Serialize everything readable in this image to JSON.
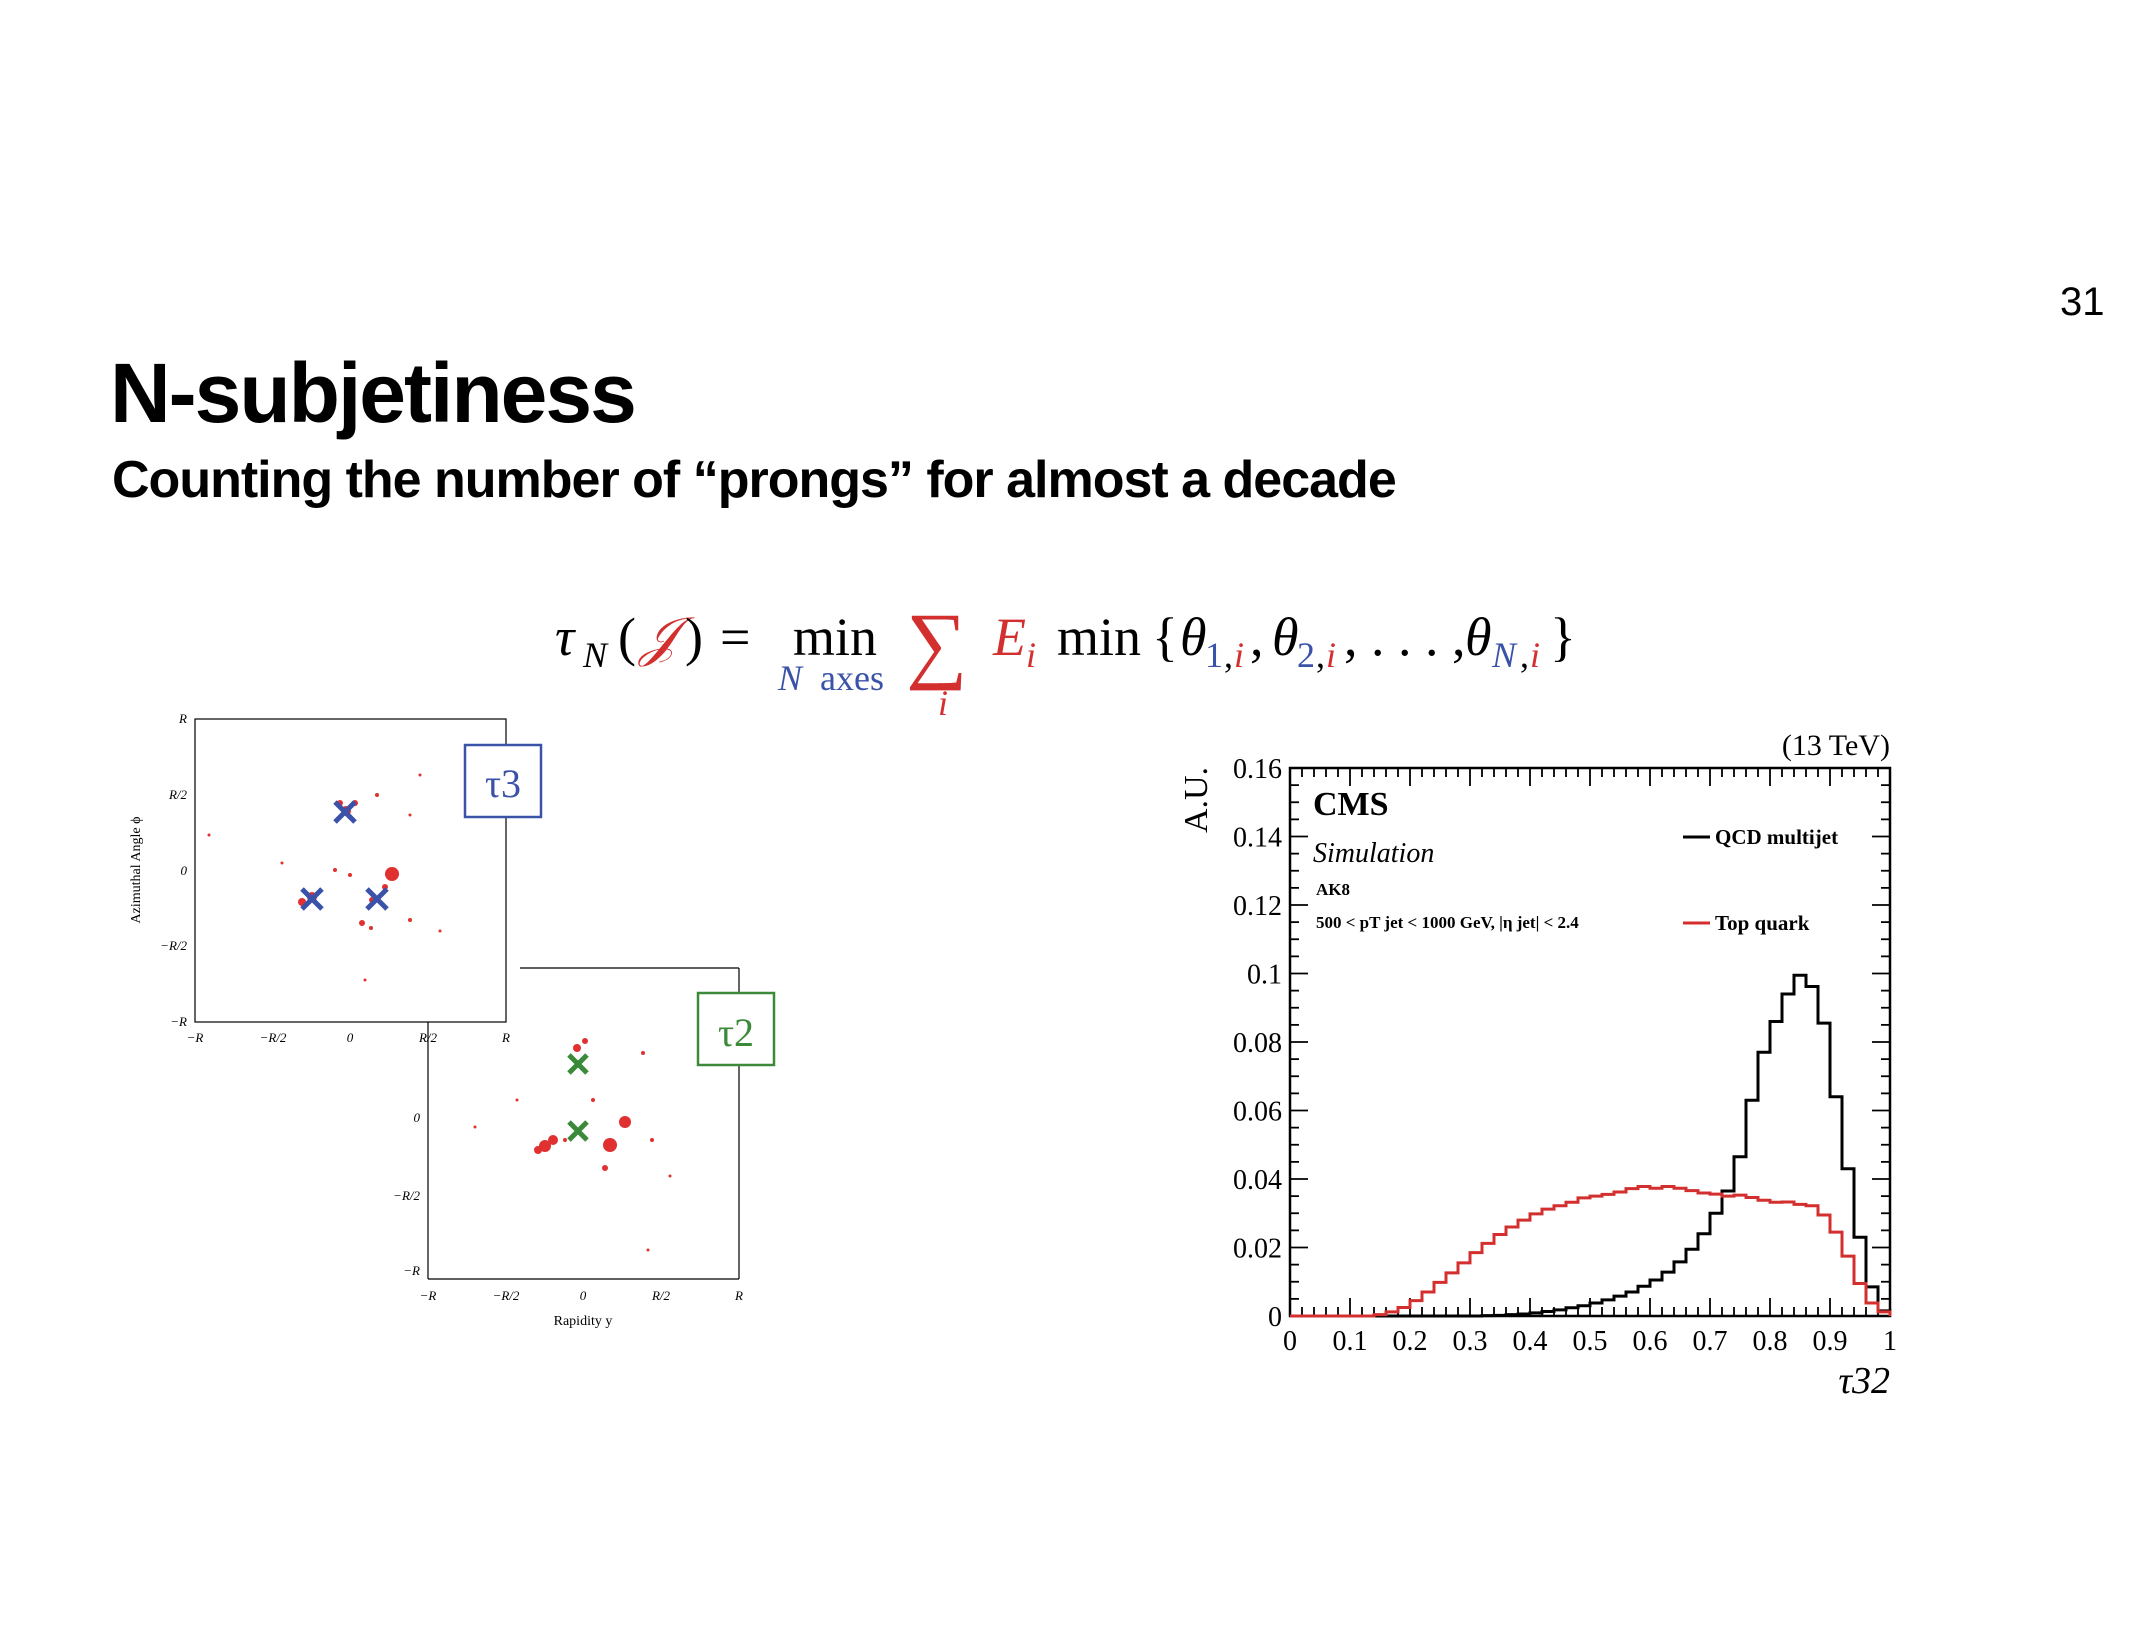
{
  "slide": {
    "number": "31",
    "title": "N-subjetiness",
    "subtitle": "Counting the number of “prongs” for almost a decade"
  },
  "formula": {
    "lhs_tau": "τ",
    "lhs_sub": "N",
    "lhs_open": "(",
    "lhs_J": "𝒥",
    "lhs_close": ")",
    "equals": "=",
    "min": "min",
    "min_sub_N": "N",
    "min_sub_axes": "axes",
    "sum": "∑",
    "sum_sub": "i",
    "E": "E",
    "E_sub": "i",
    "min2": "min",
    "open_brace": "{",
    "theta": "θ",
    "theta1_sub_a": "1",
    "theta2_sub_a": "2",
    "thetaN_sub_a": "N",
    "theta_sub_comma": ",",
    "theta_sub_i": "i",
    "separator": ",",
    "dots": ", . . . ,",
    "close_brace": "}"
  },
  "jet_plots": {
    "tau3_label": "τ3",
    "tau2_label": "τ2",
    "ylabel": "Azimuthal Angle ϕ",
    "xlabel": "Rapidity y",
    "ticks": [
      "−R",
      "−R/2",
      "0",
      "R/2",
      "R"
    ],
    "yticks_top": [
      "R",
      "R/2",
      "0",
      "−R/2",
      "−R"
    ],
    "yticks_bottom": [
      "0",
      "−R/2",
      "−R"
    ],
    "colors": {
      "particles": "#e03030",
      "tau3_axes": "#3a52a8",
      "tau2_axes": "#3a8a3a"
    }
  },
  "chart_data": {
    "type": "line",
    "title": "",
    "energy_label": "(13 TeV)",
    "experiment": "CMS",
    "simulation_label": "Simulation",
    "jet_algo": "AK8",
    "cut_label": "500 < pT jet < 1000 GeV, |η jet| < 2.4",
    "xlabel": "τ32",
    "ylabel": "A.U.",
    "xlim": [
      0,
      1
    ],
    "ylim": [
      0,
      0.16
    ],
    "xticks": [
      "0",
      "0.1",
      "0.2",
      "0.3",
      "0.4",
      "0.5",
      "0.6",
      "0.7",
      "0.8",
      "0.9",
      "1"
    ],
    "yticks": [
      "0",
      "0.02",
      "0.04",
      "0.06",
      "0.08",
      "0.1",
      "0.12",
      "0.14",
      "0.16"
    ],
    "legend_position": "top-right",
    "bin_edges": [
      0,
      0.02,
      0.04,
      0.06,
      0.08,
      0.1,
      0.12,
      0.14,
      0.16,
      0.18,
      0.2,
      0.22,
      0.24,
      0.26,
      0.28,
      0.3,
      0.32,
      0.34,
      0.36,
      0.38,
      0.4,
      0.42,
      0.44,
      0.46,
      0.48,
      0.5,
      0.52,
      0.54,
      0.56,
      0.58,
      0.6,
      0.62,
      0.64,
      0.66,
      0.68,
      0.7,
      0.72,
      0.74,
      0.76,
      0.78,
      0.8,
      0.82,
      0.84,
      0.86,
      0.88,
      0.9,
      0.92,
      0.94,
      0.96,
      0.98,
      1.0
    ],
    "series": [
      {
        "name": "QCD multijet",
        "color": "#000000",
        "values": [
          0,
          0,
          0,
          0,
          0,
          0,
          0,
          0,
          0,
          0,
          0,
          0,
          0,
          0,
          0,
          0,
          0.0001,
          0.0002,
          0.0004,
          0.0006,
          0.0009,
          0.0013,
          0.0018,
          0.0024,
          0.003,
          0.0038,
          0.0047,
          0.0058,
          0.007,
          0.0087,
          0.0105,
          0.0128,
          0.0158,
          0.0195,
          0.024,
          0.03,
          0.0365,
          0.0465,
          0.063,
          0.077,
          0.086,
          0.094,
          0.0995,
          0.0962,
          0.0855,
          0.064,
          0.043,
          0.023,
          0.0085,
          0.0015
        ]
      },
      {
        "name": "Top quark",
        "color": "#d32f2f",
        "values": [
          0,
          0,
          0,
          0,
          0,
          0,
          0,
          0.0004,
          0.0012,
          0.0025,
          0.0045,
          0.007,
          0.0098,
          0.0126,
          0.0155,
          0.0185,
          0.0212,
          0.0238,
          0.026,
          0.028,
          0.0298,
          0.0312,
          0.0322,
          0.0332,
          0.0345,
          0.035,
          0.0355,
          0.0362,
          0.0372,
          0.0378,
          0.0373,
          0.0378,
          0.0373,
          0.0366,
          0.0359,
          0.0356,
          0.035,
          0.0353,
          0.0346,
          0.0338,
          0.0332,
          0.0333,
          0.0326,
          0.0322,
          0.0295,
          0.0245,
          0.0175,
          0.0095,
          0.0038,
          0.0012
        ]
      }
    ]
  }
}
